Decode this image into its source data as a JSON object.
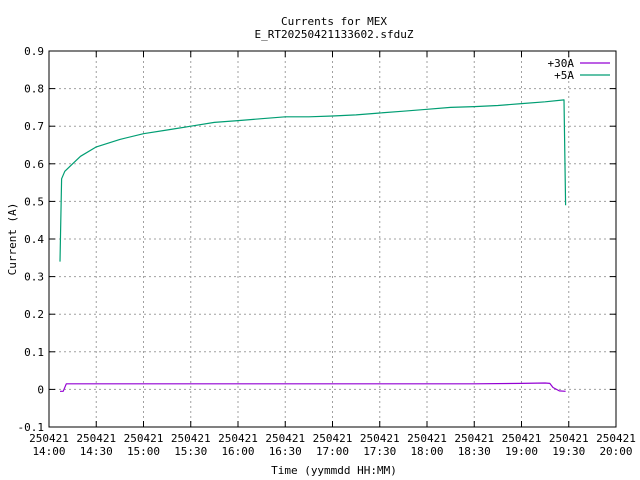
{
  "chart_data": {
    "type": "line",
    "title": "Currents for MEX",
    "subtitle": "E_RT20250421133602.sfduZ",
    "xlabel": "Time (yymmdd HH:MM)",
    "ylabel": "Current (A)",
    "ylim": [
      -0.1,
      0.9
    ],
    "yticks": [
      "-0.1",
      "0",
      "0.1",
      "0.2",
      "0.3",
      "0.4",
      "0.5",
      "0.6",
      "0.7",
      "0.8",
      "0.9"
    ],
    "xlim": [
      "250421 14:00",
      "250421 20:00"
    ],
    "xticks": [
      {
        "date": "250421",
        "time": "14:00"
      },
      {
        "date": "250421",
        "time": "14:30"
      },
      {
        "date": "250421",
        "time": "15:00"
      },
      {
        "date": "250421",
        "time": "15:30"
      },
      {
        "date": "250421",
        "time": "16:00"
      },
      {
        "date": "250421",
        "time": "16:30"
      },
      {
        "date": "250421",
        "time": "17:00"
      },
      {
        "date": "250421",
        "time": "17:30"
      },
      {
        "date": "250421",
        "time": "18:00"
      },
      {
        "date": "250421",
        "time": "18:30"
      },
      {
        "date": "250421",
        "time": "19:00"
      },
      {
        "date": "250421",
        "time": "19:30"
      },
      {
        "date": "250421",
        "time": "20:00"
      }
    ],
    "grid": true,
    "legend_position": "top-right",
    "series": [
      {
        "name": "+30A",
        "color": "#9400d3",
        "x": [
          "14:07",
          "14:09",
          "14:11",
          "14:20",
          "14:30",
          "15:00",
          "15:30",
          "16:00",
          "16:30",
          "17:00",
          "17:30",
          "18:00",
          "18:30",
          "19:00",
          "19:15",
          "19:18",
          "19:20",
          "19:24",
          "19:28"
        ],
        "y": [
          -0.005,
          -0.005,
          0.015,
          0.015,
          0.015,
          0.015,
          0.015,
          0.015,
          0.015,
          0.015,
          0.015,
          0.015,
          0.015,
          0.016,
          0.017,
          0.016,
          0.005,
          -0.004,
          -0.005
        ]
      },
      {
        "name": "+5A",
        "color": "#009e73",
        "x": [
          "14:07",
          "14:08",
          "14:10",
          "14:15",
          "14:20",
          "14:30",
          "14:45",
          "15:00",
          "15:15",
          "15:30",
          "15:45",
          "16:00",
          "16:15",
          "16:30",
          "16:45",
          "17:00",
          "17:15",
          "17:30",
          "17:45",
          "18:00",
          "18:15",
          "18:30",
          "18:45",
          "19:00",
          "19:15",
          "19:27",
          "19:28"
        ],
        "y": [
          0.34,
          0.56,
          0.58,
          0.6,
          0.62,
          0.645,
          0.665,
          0.68,
          0.69,
          0.7,
          0.71,
          0.715,
          0.72,
          0.725,
          0.725,
          0.727,
          0.73,
          0.735,
          0.74,
          0.745,
          0.75,
          0.752,
          0.755,
          0.76,
          0.765,
          0.77,
          0.49
        ]
      }
    ]
  }
}
